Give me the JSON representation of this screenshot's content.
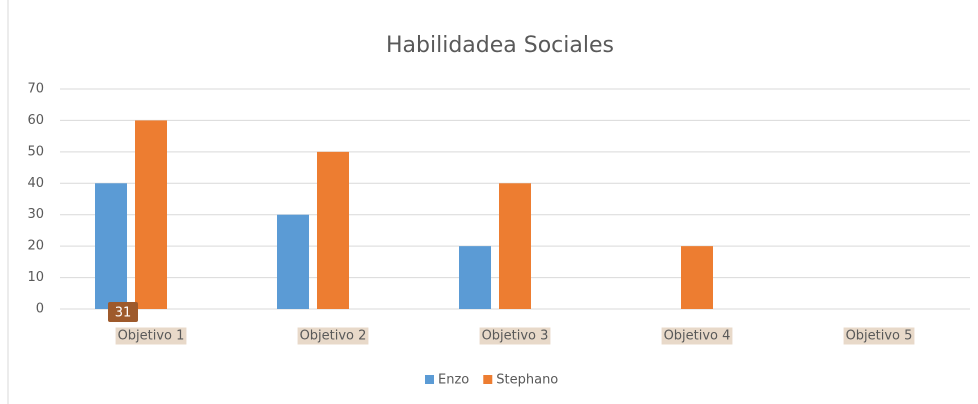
{
  "chart_data": {
    "type": "bar",
    "title": "Habilidadea Sociales",
    "categories": [
      "Objetivo 1",
      "Objetivo 2",
      "Objetivo 3",
      "Objetivo 4",
      "Objetivo 5"
    ],
    "series": [
      {
        "name": "Enzo",
        "color": "#5b9bd5",
        "values": [
          40,
          30,
          20,
          0,
          0
        ]
      },
      {
        "name": "Stephano",
        "color": "#ed7d31",
        "values": [
          60,
          50,
          40,
          20,
          0
        ]
      }
    ],
    "ylim": [
      0,
      70
    ],
    "yticks": [
      0,
      10,
      20,
      30,
      40,
      50,
      60,
      70
    ],
    "grid": true,
    "legend": "bottom",
    "annotation": "31"
  }
}
